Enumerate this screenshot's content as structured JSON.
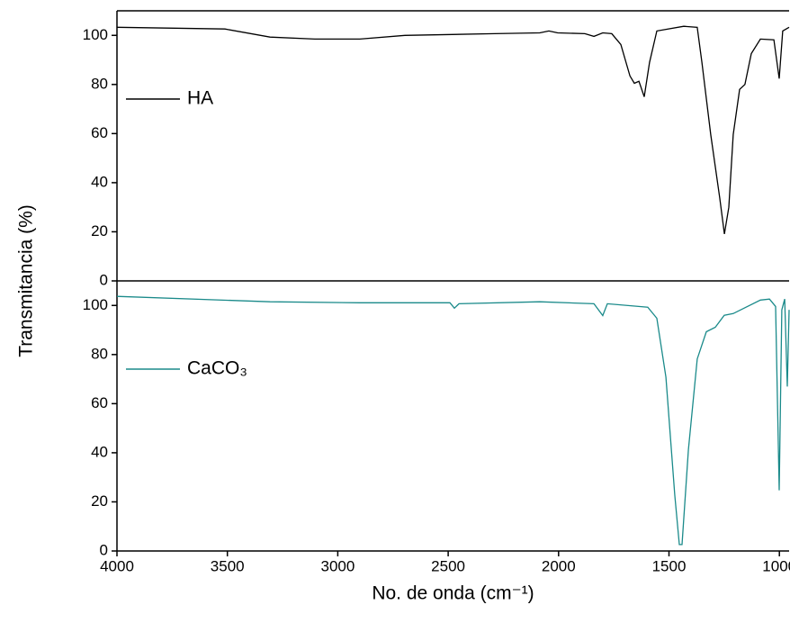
{
  "chart_data": [
    {
      "type": "line",
      "ylabel": "Transmitancia (%)",
      "legend": "left",
      "xlim": [
        4000,
        956
      ],
      "ylim": [
        0,
        110
      ],
      "yticks": [
        0,
        20,
        40,
        60,
        80,
        100
      ],
      "x": [
        4000,
        3511,
        3307,
        3104,
        2900,
        2696,
        2289,
        2085,
        2044,
        2004,
        1881,
        1840,
        1800,
        1759,
        1718,
        1677,
        1657,
        1636,
        1612,
        1588,
        1555,
        1433,
        1372,
        1351,
        1311,
        1270,
        1249,
        1229,
        1209,
        1180,
        1156,
        1127,
        1086,
        1025,
        1001,
        985,
        956
      ],
      "series": [
        {
          "name": "HA",
          "color": "#000000",
          "values": [
            103.3,
            102.6,
            99.3,
            98.5,
            98.5,
            100,
            100.7,
            101,
            101.8,
            101,
            100.7,
            99.6,
            101,
            100.7,
            96.3,
            83.5,
            80.5,
            81.3,
            75,
            89,
            101.8,
            103.7,
            103.3,
            89,
            59.6,
            33.8,
            19.1,
            30,
            59.6,
            78,
            80,
            92.6,
            98.5,
            98.2,
            82.4,
            101.8,
            103.3
          ]
        }
      ]
    },
    {
      "type": "line",
      "xlabel": "No. de onda (cm⁻¹)",
      "legend": "left",
      "xlim": [
        4000,
        956
      ],
      "ylim": [
        0,
        110
      ],
      "yticks": [
        0,
        20,
        40,
        60,
        80,
        100
      ],
      "xticks": [
        4000,
        3500,
        3000,
        2500,
        2000,
        1500,
        1000
      ],
      "x": [
        4000,
        3307,
        2900,
        2492,
        2472,
        2451,
        2085,
        1840,
        1800,
        1779,
        1596,
        1555,
        1514,
        1474,
        1453,
        1441,
        1412,
        1372,
        1331,
        1290,
        1250,
        1209,
        1086,
        1045,
        1017,
        1001,
        989,
        976,
        964,
        956
      ],
      "series": [
        {
          "name": "CaCO₃",
          "color": "#1a8a8a",
          "values": [
            103.7,
            101.5,
            101.1,
            101.1,
            98.9,
            100.7,
            101.5,
            100.7,
            95.9,
            100.7,
            99.3,
            94.8,
            70.8,
            22.9,
            2.6,
            2.6,
            41.3,
            78.2,
            89.3,
            91.1,
            96,
            96.7,
            102.2,
            102.6,
            99.6,
            24.7,
            98.2,
            102.6,
            67,
            98.2
          ]
        }
      ]
    }
  ]
}
